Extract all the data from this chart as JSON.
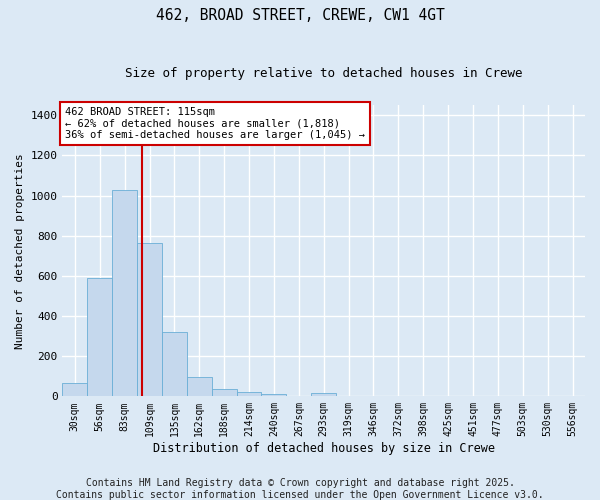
{
  "title": "462, BROAD STREET, CREWE, CW1 4GT",
  "subtitle": "Size of property relative to detached houses in Crewe",
  "xlabel": "Distribution of detached houses by size in Crewe",
  "ylabel": "Number of detached properties",
  "categories": [
    "30sqm",
    "56sqm",
    "83sqm",
    "109sqm",
    "135sqm",
    "162sqm",
    "188sqm",
    "214sqm",
    "240sqm",
    "267sqm",
    "293sqm",
    "319sqm",
    "346sqm",
    "372sqm",
    "398sqm",
    "425sqm",
    "451sqm",
    "477sqm",
    "503sqm",
    "530sqm",
    "556sqm"
  ],
  "bar_heights": [
    65,
    590,
    1030,
    765,
    320,
    95,
    35,
    20,
    10,
    0,
    15,
    0,
    0,
    0,
    0,
    0,
    0,
    0,
    0,
    0,
    0
  ],
  "bar_color": "#c5d8ed",
  "bar_edge_color": "#6aaed6",
  "vline_color": "#cc0000",
  "annotation_text": "462 BROAD STREET: 115sqm\n← 62% of detached houses are smaller (1,818)\n36% of semi-detached houses are larger (1,045) →",
  "annotation_box_facecolor": "white",
  "annotation_box_edgecolor": "#cc0000",
  "background_color": "#dce9f5",
  "grid_color": "white",
  "ylim": [
    0,
    1450
  ],
  "yticks": [
    0,
    200,
    400,
    600,
    800,
    1000,
    1200,
    1400
  ],
  "footer_line1": "Contains HM Land Registry data © Crown copyright and database right 2025.",
  "footer_line2": "Contains public sector information licensed under the Open Government Licence v3.0."
}
